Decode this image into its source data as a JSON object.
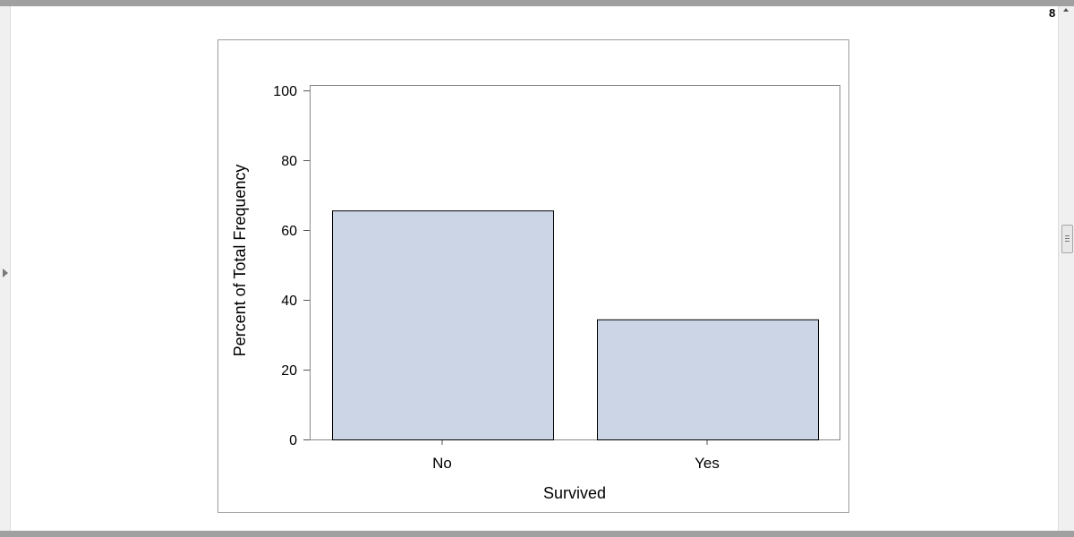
{
  "window": {
    "page_indicator": "8"
  },
  "chart_data": {
    "type": "bar",
    "title": "",
    "xlabel": "Survived",
    "ylabel": "Percent of Total Frequency",
    "categories": [
      "No",
      "Yes"
    ],
    "values": [
      65.6,
      34.4
    ],
    "ylim": [
      0,
      100
    ],
    "yticks": [
      0,
      20,
      40,
      60,
      80,
      100
    ],
    "grid": false,
    "bar_color": "#cbd5e5",
    "bar_edge_color": "#000000"
  }
}
